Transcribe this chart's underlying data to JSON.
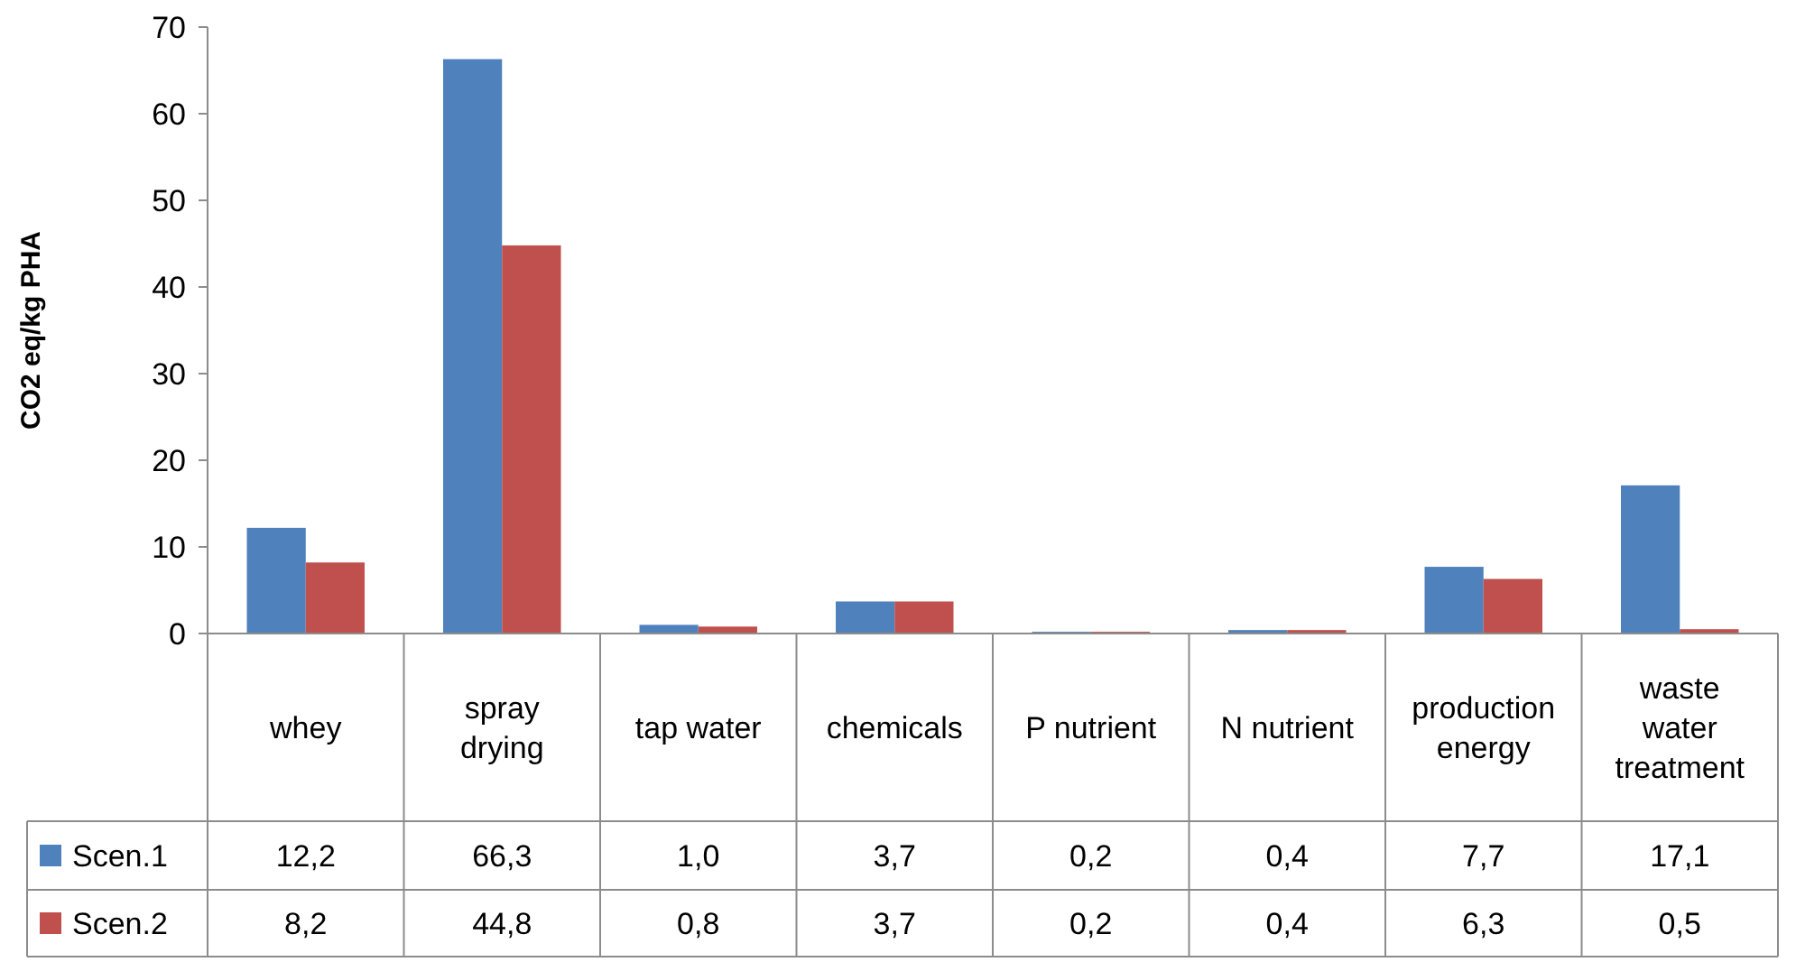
{
  "chart_data": {
    "type": "bar",
    "ylabel": "CO2 eq/kg PHA",
    "categories": [
      "whey",
      "spray drying",
      "tap water",
      "chemicals",
      "P nutrient",
      "N nutrient",
      "production energy",
      "waste water treatment"
    ],
    "series": [
      {
        "name": "Scen.1",
        "color": "#4f81bd",
        "values": [
          12.2,
          66.3,
          1.0,
          3.7,
          0.2,
          0.4,
          7.7,
          17.1
        ],
        "value_labels": [
          "12,2",
          "66,3",
          "1,0",
          "3,7",
          "0,2",
          "0,4",
          "7,7",
          "17,1"
        ]
      },
      {
        "name": "Scen.2",
        "color": "#c0504d",
        "values": [
          8.2,
          44.8,
          0.8,
          3.7,
          0.2,
          0.4,
          6.3,
          0.5
        ],
        "value_labels": [
          "8,2",
          "44,8",
          "0,8",
          "3,7",
          "0,2",
          "0,4",
          "6,3",
          "0,5"
        ]
      }
    ],
    "ylim": [
      0,
      70
    ],
    "yticks": [
      0,
      10,
      20,
      30,
      40,
      50,
      60,
      70
    ],
    "legend": "bottom"
  }
}
